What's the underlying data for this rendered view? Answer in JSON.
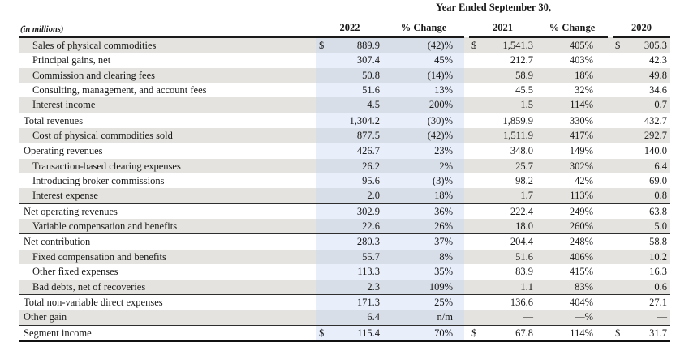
{
  "table": {
    "units_label": "(in millions)",
    "period_header": "Year Ended September 30,",
    "columns": [
      "2022",
      "% Change",
      "2021",
      "% Change",
      "2020"
    ],
    "colors": {
      "stripe_gray": "#e4e3df",
      "column_highlight_blue": "#dfe6f6",
      "rule_black": "#1a1a1a"
    },
    "rows": [
      {
        "label": "Sales of physical commodities",
        "indent": true,
        "stripe": true,
        "rule_above": false,
        "cells": [
          "$",
          "889.9",
          "(42)%",
          "$",
          "1,541.3",
          "405%",
          "$",
          "305.3"
        ]
      },
      {
        "label": "Principal gains, net",
        "indent": true,
        "stripe": false,
        "rule_above": false,
        "cells": [
          "",
          "307.4",
          "45%",
          "",
          "212.7",
          "403%",
          "",
          "42.3"
        ]
      },
      {
        "label": "Commission and clearing fees",
        "indent": true,
        "stripe": true,
        "rule_above": false,
        "cells": [
          "",
          "50.8",
          "(14)%",
          "",
          "58.9",
          "18%",
          "",
          "49.8"
        ]
      },
      {
        "label": "Consulting, management, and account fees",
        "indent": true,
        "stripe": false,
        "rule_above": false,
        "cells": [
          "",
          "51.6",
          "13%",
          "",
          "45.5",
          "32%",
          "",
          "34.6"
        ]
      },
      {
        "label": "Interest income",
        "indent": true,
        "stripe": true,
        "rule_above": false,
        "cells": [
          "",
          "4.5",
          "200%",
          "",
          "1.5",
          "114%",
          "",
          "0.7"
        ]
      },
      {
        "label": "Total revenues",
        "indent": false,
        "stripe": false,
        "rule_above": true,
        "cells": [
          "",
          "1,304.2",
          "(30)%",
          "",
          "1,859.9",
          "330%",
          "",
          "432.7"
        ]
      },
      {
        "label": "Cost of physical commodities sold",
        "indent": true,
        "stripe": true,
        "rule_above": false,
        "cells": [
          "",
          "877.5",
          "(42)%",
          "",
          "1,511.9",
          "417%",
          "",
          "292.7"
        ]
      },
      {
        "label": "Operating revenues",
        "indent": false,
        "stripe": false,
        "rule_above": true,
        "cells": [
          "",
          "426.7",
          "23%",
          "",
          "348.0",
          "149%",
          "",
          "140.0"
        ]
      },
      {
        "label": "Transaction-based clearing expenses",
        "indent": true,
        "stripe": true,
        "rule_above": false,
        "cells": [
          "",
          "26.2",
          "2%",
          "",
          "25.7",
          "302%",
          "",
          "6.4"
        ]
      },
      {
        "label": "Introducing broker commissions",
        "indent": true,
        "stripe": false,
        "rule_above": false,
        "cells": [
          "",
          "95.6",
          "(3)%",
          "",
          "98.2",
          "42%",
          "",
          "69.0"
        ]
      },
      {
        "label": "Interest expense",
        "indent": true,
        "stripe": true,
        "rule_above": false,
        "cells": [
          "",
          "2.0",
          "18%",
          "",
          "1.7",
          "113%",
          "",
          "0.8"
        ]
      },
      {
        "label": "Net operating revenues",
        "indent": false,
        "stripe": false,
        "rule_above": true,
        "cells": [
          "",
          "302.9",
          "36%",
          "",
          "222.4",
          "249%",
          "",
          "63.8"
        ]
      },
      {
        "label": "Variable compensation and benefits",
        "indent": true,
        "stripe": true,
        "rule_above": false,
        "cells": [
          "",
          "22.6",
          "26%",
          "",
          "18.0",
          "260%",
          "",
          "5.0"
        ]
      },
      {
        "label": "Net contribution",
        "indent": false,
        "stripe": false,
        "rule_above": true,
        "cells": [
          "",
          "280.3",
          "37%",
          "",
          "204.4",
          "248%",
          "",
          "58.8"
        ]
      },
      {
        "label": "Fixed compensation and benefits",
        "indent": true,
        "stripe": true,
        "rule_above": false,
        "cells": [
          "",
          "55.7",
          "8%",
          "",
          "51.6",
          "406%",
          "",
          "10.2"
        ]
      },
      {
        "label": "Other fixed expenses",
        "indent": true,
        "stripe": false,
        "rule_above": false,
        "cells": [
          "",
          "113.3",
          "35%",
          "",
          "83.9",
          "415%",
          "",
          "16.3"
        ]
      },
      {
        "label": "Bad debts, net of recoveries",
        "indent": true,
        "stripe": true,
        "rule_above": false,
        "cells": [
          "",
          "2.3",
          "109%",
          "",
          "1.1",
          "83%",
          "",
          "0.6"
        ]
      },
      {
        "label": "Total non-variable direct expenses",
        "indent": false,
        "stripe": false,
        "rule_above": true,
        "cells": [
          "",
          "171.3",
          "25%",
          "",
          "136.6",
          "404%",
          "",
          "27.1"
        ]
      },
      {
        "label": "Other gain",
        "indent": false,
        "stripe": true,
        "rule_above": false,
        "cells": [
          "",
          "6.4",
          "n/m",
          "",
          "—",
          "—%",
          "",
          "—"
        ]
      },
      {
        "label": "Segment income",
        "indent": false,
        "stripe": false,
        "rule_above": true,
        "cells": [
          "$",
          "115.4",
          "70%",
          "$",
          "67.8",
          "114%",
          "$",
          "31.7"
        ]
      }
    ]
  }
}
